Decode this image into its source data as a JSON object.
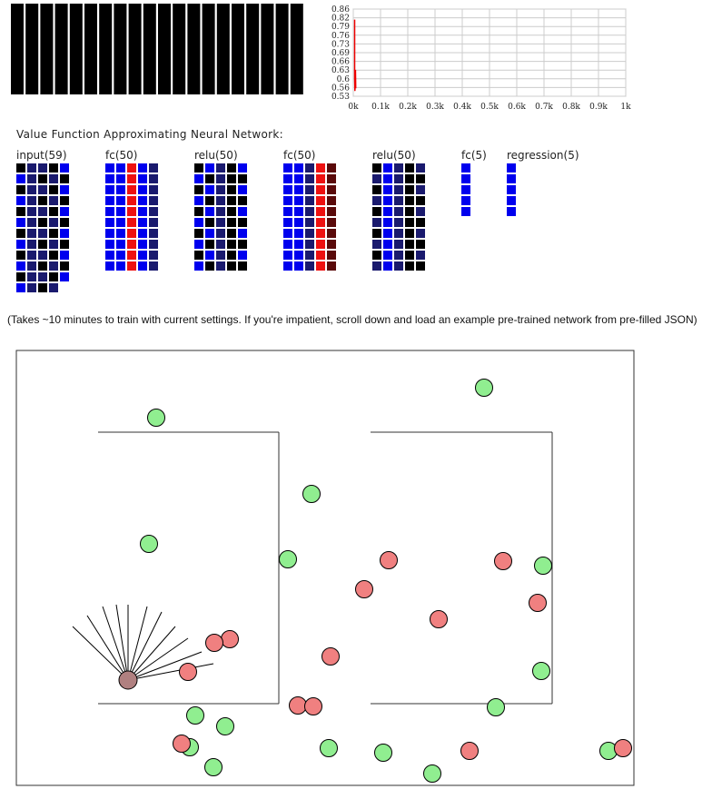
{
  "reward_window": {
    "bar_count": 20,
    "bar_color": "#000000"
  },
  "nn_section": {
    "title": "Value Function Approximating Neural Network:",
    "layers": [
      {
        "label": "input(59)",
        "units": 59
      },
      {
        "label": "fc(50)",
        "units": 50
      },
      {
        "label": "relu(50)",
        "units": 50
      },
      {
        "label": "fc(50)",
        "units": 50
      },
      {
        "label": "relu(50)",
        "units": 50
      },
      {
        "label": "fc(5)",
        "units": 5
      },
      {
        "label": "regression(5)",
        "units": 5
      }
    ],
    "colors": {
      "black": "#000000",
      "navy": "#1a1a6e",
      "blue": "#0000ee",
      "red": "#ee1111",
      "darkred": "#5a0a0a"
    }
  },
  "info": {
    "text": "(Takes ~10 minutes to train with current settings. If you're impatient, scroll down and load an example pre-trained network from pre-filled JSON)"
  },
  "chart_data": {
    "type": "line",
    "title": "",
    "xlabel": "",
    "ylabel": "",
    "x_ticks": [
      "0k",
      "0.1k",
      "0.2k",
      "0.3k",
      "0.4k",
      "0.5k",
      "0.6k",
      "0.7k",
      "0.8k",
      "0.9k",
      "1k"
    ],
    "y_ticks": [
      "0.86",
      "0.82",
      "0.79",
      "0.76",
      "0.73",
      "0.69",
      "0.66",
      "0.63",
      "0.6",
      "0.56",
      "0.53"
    ],
    "xlim": [
      0,
      1000
    ],
    "ylim": [
      0.53,
      0.86
    ],
    "grid": true,
    "series": [
      {
        "color": "#ee0000",
        "x": [
          0,
          0,
          1,
          2,
          3,
          4
        ],
        "y": [
          0.82,
          0.6,
          0.55,
          0.58,
          0.63,
          0.56
        ]
      }
    ]
  },
  "world": {
    "colors": {
      "good": "#90ee90",
      "bad": "#f08080",
      "agent": "#b08080"
    }
  }
}
